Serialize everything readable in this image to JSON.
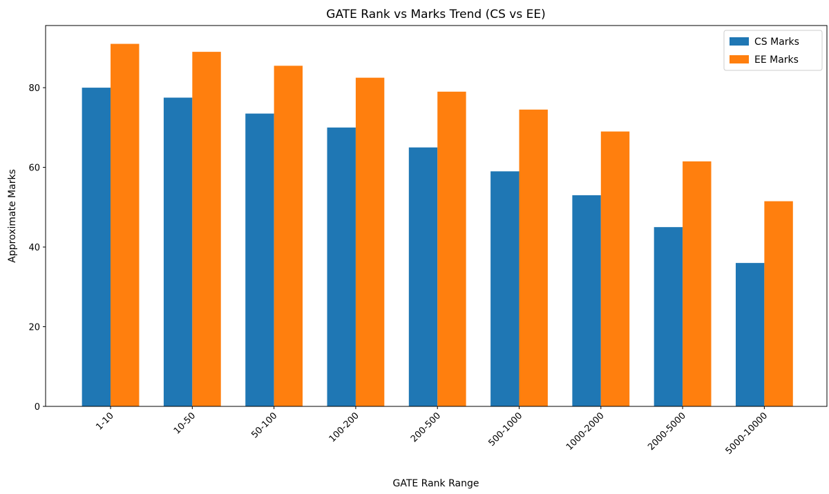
{
  "chart_data": {
    "type": "bar",
    "title": "GATE Rank vs Marks Trend (CS vs EE)",
    "xlabel": "GATE Rank Range",
    "ylabel": "Approximate Marks",
    "categories": [
      "1-10",
      "10-50",
      "50-100",
      "100-200",
      "200-500",
      "500-1000",
      "1000-2000",
      "2000-5000",
      "5000-10000"
    ],
    "series": [
      {
        "name": "CS Marks",
        "color": "#1f77b4",
        "values": [
          80,
          77.5,
          73.5,
          70,
          65,
          59,
          53,
          45,
          36
        ]
      },
      {
        "name": "EE Marks",
        "color": "#ff7f0e",
        "values": [
          91,
          89,
          85.5,
          82.5,
          79,
          74.5,
          69,
          61.5,
          51.5
        ]
      }
    ],
    "ylim": [
      0,
      95.6
    ],
    "yticks": [
      0,
      20,
      40,
      60,
      80
    ],
    "grid": false,
    "legend": "top-right",
    "xtick_rotation": 45
  }
}
